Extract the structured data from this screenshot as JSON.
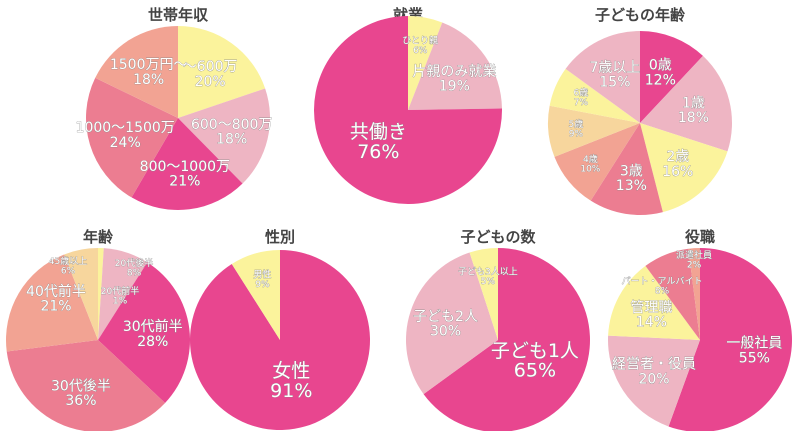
{
  "colors": {
    "magenta": "#e8468f",
    "lightpink": "#eeb5c3",
    "yellow": "#fbf39c",
    "pink": "#ec7d91",
    "salmon": "#f2a393",
    "tan": "#f7d69d"
  },
  "chart_data": [
    {
      "type": "pie",
      "title": "世帯年収",
      "slices": [
        {
          "label": "～600万",
          "value": 20,
          "color": "yellow"
        },
        {
          "label": "600～800万",
          "value": 18,
          "color": "lightpink"
        },
        {
          "label": "800～1000万",
          "value": 21,
          "color": "magenta"
        },
        {
          "label": "1000～1500万",
          "value": 24,
          "color": "pink"
        },
        {
          "label": "1500万円～",
          "value": 18,
          "color": "salmon"
        }
      ]
    },
    {
      "type": "pie",
      "title": "就業",
      "slices": [
        {
          "label": "ひとり親",
          "value": 6,
          "color": "yellow"
        },
        {
          "label": "片親のみ就業",
          "value": 19,
          "color": "lightpink"
        },
        {
          "label": "共働き",
          "value": 76,
          "color": "magenta"
        }
      ]
    },
    {
      "type": "pie",
      "title": "子どもの年齢",
      "slices": [
        {
          "label": "0歳",
          "value": 12,
          "color": "magenta"
        },
        {
          "label": "1歳",
          "value": 18,
          "color": "lightpink"
        },
        {
          "label": "2歳",
          "value": 16,
          "color": "yellow"
        },
        {
          "label": "3歳",
          "value": 13,
          "color": "pink"
        },
        {
          "label": "4歳",
          "value": 10,
          "color": "salmon"
        },
        {
          "label": "5歳",
          "value": 9,
          "color": "tan"
        },
        {
          "label": "6歳",
          "value": 7,
          "color": "yellow"
        },
        {
          "label": "7歳以上",
          "value": 15,
          "color": "lightpink"
        }
      ]
    },
    {
      "type": "pie",
      "title": "年齢",
      "slices": [
        {
          "label": "20代前半",
          "value": 1,
          "color": "yellow"
        },
        {
          "label": "20代後半",
          "value": 8,
          "color": "lightpink"
        },
        {
          "label": "30代前半",
          "value": 28,
          "color": "magenta"
        },
        {
          "label": "30代後半",
          "value": 36,
          "color": "pink"
        },
        {
          "label": "40代前半",
          "value": 21,
          "color": "salmon"
        },
        {
          "label": "45歳以上",
          "value": 6,
          "color": "tan"
        }
      ]
    },
    {
      "type": "pie",
      "title": "性別",
      "slices": [
        {
          "label": "女性",
          "value": 91,
          "color": "magenta"
        },
        {
          "label": "男性",
          "value": 9,
          "color": "yellow"
        }
      ]
    },
    {
      "type": "pie",
      "title": "子どもの数",
      "slices": [
        {
          "label": "子ども1人",
          "value": 65,
          "color": "magenta"
        },
        {
          "label": "子ども2人",
          "value": 30,
          "color": "lightpink"
        },
        {
          "label": "子ども3人以上",
          "value": 5,
          "color": "yellow"
        }
      ]
    },
    {
      "type": "pie",
      "title": "役職",
      "slices": [
        {
          "label": "一般社員",
          "value": 55,
          "color": "magenta"
        },
        {
          "label": "経営者・役員",
          "value": 20,
          "color": "lightpink"
        },
        {
          "label": "管理職",
          "value": 14,
          "color": "yellow"
        },
        {
          "label": "パート・アルバイト",
          "value": 8,
          "color": "pink"
        },
        {
          "label": "派遣社員",
          "value": 2,
          "color": "salmon"
        }
      ]
    }
  ]
}
